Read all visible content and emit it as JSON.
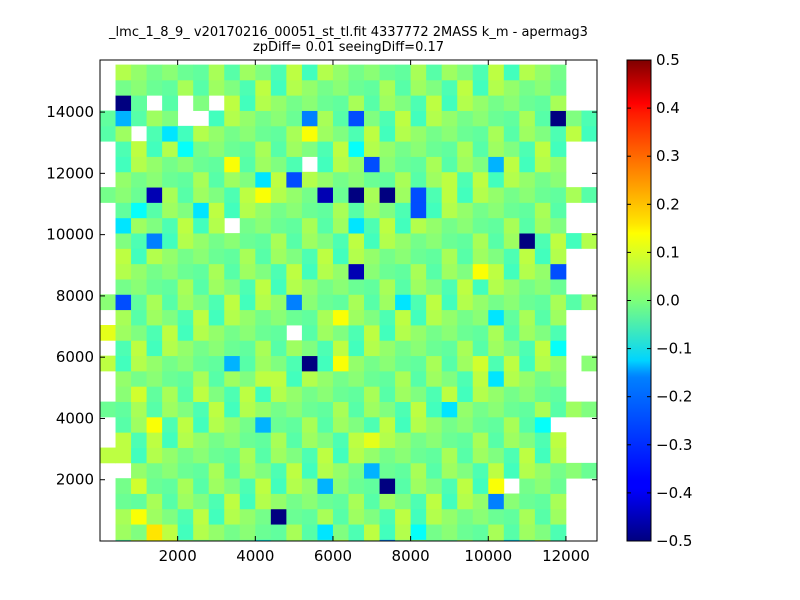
{
  "chart_data": {
    "type": "heatmap",
    "title": "_lmc_1_8_9_ v20170216_00051_st_tl.fit 4337772 2MASS k_m - apermag3",
    "subtitle": "zpDiff= 0.01 seeingDiff=0.17",
    "xlabel": "",
    "ylabel": "",
    "xlim": [
      0,
      12800
    ],
    "ylim": [
      0,
      15700
    ],
    "xticks": [
      2000,
      4000,
      6000,
      8000,
      10000,
      12000
    ],
    "yticks": [
      2000,
      4000,
      6000,
      8000,
      10000,
      12000,
      14000
    ],
    "xtick_labels": [
      "2000",
      "4000",
      "6000",
      "8000",
      "10000",
      "12000"
    ],
    "ytick_labels": [
      "2000",
      "4000",
      "6000",
      "8000",
      "10000",
      "12000",
      "14000"
    ],
    "colormap": "jet",
    "colorbar": {
      "vmin": -0.5,
      "vmax": 0.5,
      "ticks": [
        0.5,
        0.4,
        0.3,
        0.2,
        0.1,
        0.0,
        -0.1,
        -0.2,
        -0.3,
        -0.4,
        -0.5
      ],
      "tick_labels": [
        "0.5",
        "0.4",
        "0.3",
        "0.2",
        "0.1",
        "0.0",
        "−0.1",
        "−0.2",
        "−0.3",
        "−0.4",
        "−0.5"
      ]
    },
    "grid": false,
    "x_bin_width": 400,
    "y_bin_height": 500,
    "n_cols": 32,
    "n_rows": 31,
    "fill_range_default": [
      1,
      29
    ],
    "fill_range_wide_rows": {
      "4": [
        0,
        31
      ],
      "8": [
        0,
        31
      ],
      "11": [
        0,
        31
      ],
      "15": [
        0,
        31
      ],
      "19": [
        0,
        31
      ],
      "22": [
        0,
        31
      ],
      "26": [
        0,
        31
      ],
      "27": [
        0,
        31
      ]
    },
    "base_value_pattern": [
      0.0,
      -0.03,
      0.02,
      -0.05,
      0.04,
      -0.01,
      0.06,
      -0.04,
      0.01,
      -0.06,
      0.03,
      -0.02,
      0.05
    ],
    "missing_cells": [
      [
        28,
        3
      ],
      [
        28,
        5
      ],
      [
        27,
        5
      ],
      [
        28,
        7
      ],
      [
        27,
        6
      ],
      [
        26,
        2
      ],
      [
        24,
        13
      ],
      [
        20,
        8
      ],
      [
        13,
        12
      ],
      [
        3,
        26
      ],
      [
        4,
        0
      ],
      [
        19,
        0
      ],
      [
        4,
        1
      ],
      [
        11,
        30
      ],
      [
        7,
        29
      ]
    ],
    "special_cells": [
      {
        "row": 28,
        "col": 1,
        "value": -0.5
      },
      {
        "row": 28,
        "col": 5,
        "value": -0.3
      },
      {
        "row": 27,
        "col": 1,
        "value": -0.2
      },
      {
        "row": 27,
        "col": 13,
        "value": -0.25
      },
      {
        "row": 27,
        "col": 16,
        "value": -0.3
      },
      {
        "row": 27,
        "col": 29,
        "value": -0.5
      },
      {
        "row": 26,
        "col": 4,
        "value": -0.15
      },
      {
        "row": 26,
        "col": 13,
        "value": 0.12
      },
      {
        "row": 25,
        "col": 5,
        "value": -0.12
      },
      {
        "row": 25,
        "col": 16,
        "value": -0.12
      },
      {
        "row": 24,
        "col": 8,
        "value": 0.12
      },
      {
        "row": 24,
        "col": 17,
        "value": -0.3
      },
      {
        "row": 24,
        "col": 25,
        "value": -0.2
      },
      {
        "row": 23,
        "col": 10,
        "value": -0.15
      },
      {
        "row": 23,
        "col": 12,
        "value": -0.3
      },
      {
        "row": 23,
        "col": 22,
        "value": 0.06
      },
      {
        "row": 22,
        "col": 3,
        "value": -0.45
      },
      {
        "row": 22,
        "col": 10,
        "value": 0.12
      },
      {
        "row": 22,
        "col": 14,
        "value": -0.45
      },
      {
        "row": 22,
        "col": 16,
        "value": -0.5
      },
      {
        "row": 22,
        "col": 18,
        "value": -0.5
      },
      {
        "row": 22,
        "col": 20,
        "value": -0.3
      },
      {
        "row": 21,
        "col": 2,
        "value": -0.12
      },
      {
        "row": 21,
        "col": 6,
        "value": -0.15
      },
      {
        "row": 21,
        "col": 20,
        "value": -0.3
      },
      {
        "row": 20,
        "col": 1,
        "value": -0.15
      },
      {
        "row": 20,
        "col": 16,
        "value": -0.15
      },
      {
        "row": 19,
        "col": 3,
        "value": -0.25
      },
      {
        "row": 19,
        "col": 27,
        "value": -0.5
      },
      {
        "row": 19,
        "col": 0,
        "value": 0.05
      },
      {
        "row": 17,
        "col": 16,
        "value": -0.45
      },
      {
        "row": 17,
        "col": 24,
        "value": 0.12
      },
      {
        "row": 17,
        "col": 29,
        "value": -0.3
      },
      {
        "row": 15,
        "col": 1,
        "value": -0.3
      },
      {
        "row": 15,
        "col": 12,
        "value": -0.25
      },
      {
        "row": 15,
        "col": 19,
        "value": -0.15
      },
      {
        "row": 14,
        "col": 15,
        "value": 0.12
      },
      {
        "row": 14,
        "col": 25,
        "value": -0.15
      },
      {
        "row": 13,
        "col": 0,
        "value": 0.1
      },
      {
        "row": 12,
        "col": 29,
        "value": -0.12
      },
      {
        "row": 11,
        "col": 8,
        "value": -0.2
      },
      {
        "row": 11,
        "col": 13,
        "value": -0.5
      },
      {
        "row": 11,
        "col": 15,
        "value": 0.12
      },
      {
        "row": 11,
        "col": 24,
        "value": 0.08
      },
      {
        "row": 10,
        "col": 10,
        "value": 0.06
      },
      {
        "row": 10,
        "col": 25,
        "value": -0.15
      },
      {
        "row": 9,
        "col": 2,
        "value": 0.08
      },
      {
        "row": 9,
        "col": 6,
        "value": 0.06
      },
      {
        "row": 8,
        "col": 22,
        "value": -0.15
      },
      {
        "row": 7,
        "col": 3,
        "value": 0.12
      },
      {
        "row": 7,
        "col": 10,
        "value": -0.2
      },
      {
        "row": 7,
        "col": 28,
        "value": -0.12
      },
      {
        "row": 6,
        "col": 1,
        "value": 0.06
      },
      {
        "row": 6,
        "col": 17,
        "value": 0.1
      },
      {
        "row": 5,
        "col": 0,
        "value": 0.06
      },
      {
        "row": 4,
        "col": 0,
        "value": -0.5
      },
      {
        "row": 4,
        "col": 17,
        "value": -0.2
      },
      {
        "row": 3,
        "col": 2,
        "value": 0.08
      },
      {
        "row": 3,
        "col": 14,
        "value": -0.2
      },
      {
        "row": 3,
        "col": 18,
        "value": -0.5
      },
      {
        "row": 3,
        "col": 25,
        "value": 0.12
      },
      {
        "row": 2,
        "col": 25,
        "value": -0.25
      },
      {
        "row": 1,
        "col": 2,
        "value": 0.12
      },
      {
        "row": 1,
        "col": 11,
        "value": -0.5
      },
      {
        "row": 0,
        "col": 14,
        "value": -0.15
      },
      {
        "row": 0,
        "col": 20,
        "value": -0.12
      },
      {
        "row": 0,
        "col": 3,
        "value": 0.15
      },
      {
        "row": -1,
        "col": 18,
        "value": -0.25
      },
      {
        "row": -1,
        "col": 3,
        "value": 0.12
      },
      {
        "row": -1,
        "col": 4,
        "value": 0.1
      },
      {
        "row": -1,
        "col": 10,
        "value": -0.12
      },
      {
        "row": -1,
        "col": 26,
        "value": -0.15
      }
    ]
  }
}
